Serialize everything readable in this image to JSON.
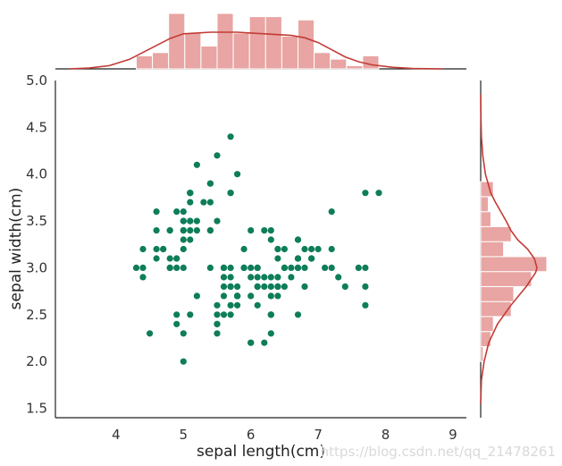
{
  "chart_data": {
    "type": "scatter",
    "xlabel": "sepal length(cm)",
    "ylabel": "sepal width(cm)",
    "xlim": [
      3.1,
      9.2
    ],
    "ylim": [
      1.4,
      5.0
    ],
    "x_ticks": [
      "4",
      "5",
      "6",
      "7",
      "8",
      "9"
    ],
    "x_tick_values": [
      4,
      5,
      6,
      7,
      8,
      9
    ],
    "y_ticks": [
      "1.5",
      "2.0",
      "2.5",
      "3.0",
      "3.5",
      "4.0",
      "4.5",
      "5.0"
    ],
    "y_tick_values": [
      1.5,
      2.0,
      2.5,
      3.0,
      3.5,
      4.0,
      4.5,
      5.0
    ],
    "grid": false,
    "scatter_color": "#0e7d5a",
    "hist_color": "#e8a5a3",
    "kde_color": "#c23b35",
    "points": [
      [
        4.3,
        3.0
      ],
      [
        4.4,
        3.0
      ],
      [
        4.4,
        2.9
      ],
      [
        4.4,
        3.2
      ],
      [
        4.5,
        2.3
      ],
      [
        4.6,
        3.1
      ],
      [
        4.6,
        3.4
      ],
      [
        4.6,
        3.6
      ],
      [
        4.6,
        3.2
      ],
      [
        4.7,
        3.2
      ],
      [
        4.7,
        3.2
      ],
      [
        4.8,
        3.4
      ],
      [
        4.8,
        3.0
      ],
      [
        4.8,
        3.4
      ],
      [
        4.8,
        3.1
      ],
      [
        4.8,
        3.0
      ],
      [
        4.9,
        3.0
      ],
      [
        4.9,
        3.1
      ],
      [
        4.9,
        3.1
      ],
      [
        4.9,
        3.6
      ],
      [
        4.9,
        2.4
      ],
      [
        4.9,
        2.5
      ],
      [
        5.0,
        3.6
      ],
      [
        5.0,
        3.4
      ],
      [
        5.0,
        3.0
      ],
      [
        5.0,
        3.4
      ],
      [
        5.0,
        3.2
      ],
      [
        5.0,
        3.5
      ],
      [
        5.0,
        3.5
      ],
      [
        5.0,
        3.3
      ],
      [
        5.0,
        2.0
      ],
      [
        5.0,
        2.3
      ],
      [
        5.1,
        3.5
      ],
      [
        5.1,
        3.5
      ],
      [
        5.1,
        3.8
      ],
      [
        5.1,
        3.7
      ],
      [
        5.1,
        3.3
      ],
      [
        5.1,
        3.4
      ],
      [
        5.1,
        3.8
      ],
      [
        5.1,
        3.8
      ],
      [
        5.1,
        2.5
      ],
      [
        5.2,
        3.5
      ],
      [
        5.2,
        3.4
      ],
      [
        5.2,
        4.1
      ],
      [
        5.2,
        2.7
      ],
      [
        5.3,
        3.7
      ],
      [
        5.4,
        3.9
      ],
      [
        5.4,
        3.7
      ],
      [
        5.4,
        3.9
      ],
      [
        5.4,
        3.4
      ],
      [
        5.4,
        3.4
      ],
      [
        5.4,
        3.0
      ],
      [
        5.5,
        4.2
      ],
      [
        5.5,
        3.5
      ],
      [
        5.5,
        2.3
      ],
      [
        5.5,
        2.4
      ],
      [
        5.5,
        2.4
      ],
      [
        5.5,
        2.5
      ],
      [
        5.5,
        2.6
      ],
      [
        5.6,
        2.9
      ],
      [
        5.6,
        3.0
      ],
      [
        5.6,
        2.5
      ],
      [
        5.6,
        3.0
      ],
      [
        5.6,
        2.7
      ],
      [
        5.6,
        2.8
      ],
      [
        5.7,
        4.4
      ],
      [
        5.7,
        3.8
      ],
      [
        5.7,
        3.8
      ],
      [
        5.7,
        2.8
      ],
      [
        5.7,
        2.6
      ],
      [
        5.7,
        3.0
      ],
      [
        5.7,
        2.9
      ],
      [
        5.7,
        2.8
      ],
      [
        5.7,
        2.5
      ],
      [
        5.8,
        4.0
      ],
      [
        5.8,
        2.7
      ],
      [
        5.8,
        2.6
      ],
      [
        5.8,
        2.7
      ],
      [
        5.8,
        2.7
      ],
      [
        5.8,
        2.8
      ],
      [
        5.8,
        2.7
      ],
      [
        5.9,
        3.0
      ],
      [
        5.9,
        3.2
      ],
      [
        5.9,
        3.0
      ],
      [
        6.0,
        2.2
      ],
      [
        6.0,
        2.9
      ],
      [
        6.0,
        3.4
      ],
      [
        6.0,
        2.7
      ],
      [
        6.0,
        2.2
      ],
      [
        6.0,
        3.0
      ],
      [
        6.1,
        2.9
      ],
      [
        6.1,
        2.8
      ],
      [
        6.1,
        2.8
      ],
      [
        6.1,
        3.0
      ],
      [
        6.1,
        2.6
      ],
      [
        6.1,
        3.0
      ],
      [
        6.2,
        2.2
      ],
      [
        6.2,
        2.9
      ],
      [
        6.2,
        2.8
      ],
      [
        6.2,
        3.4
      ],
      [
        6.3,
        3.3
      ],
      [
        6.3,
        2.5
      ],
      [
        6.3,
        2.3
      ],
      [
        6.3,
        2.5
      ],
      [
        6.3,
        2.9
      ],
      [
        6.3,
        2.7
      ],
      [
        6.3,
        2.8
      ],
      [
        6.3,
        3.4
      ],
      [
        6.3,
        2.5
      ],
      [
        6.4,
        3.2
      ],
      [
        6.4,
        2.9
      ],
      [
        6.4,
        2.7
      ],
      [
        6.4,
        3.2
      ],
      [
        6.4,
        2.8
      ],
      [
        6.4,
        2.8
      ],
      [
        6.4,
        3.1
      ],
      [
        6.5,
        2.8
      ],
      [
        6.5,
        3.0
      ],
      [
        6.5,
        3.2
      ],
      [
        6.5,
        3.0
      ],
      [
        6.6,
        3.0
      ],
      [
        6.6,
        2.9
      ],
      [
        6.7,
        3.1
      ],
      [
        6.7,
        3.0
      ],
      [
        6.7,
        3.1
      ],
      [
        6.7,
        2.5
      ],
      [
        6.7,
        3.3
      ],
      [
        6.7,
        3.1
      ],
      [
        6.7,
        3.3
      ],
      [
        6.7,
        3.0
      ],
      [
        6.8,
        2.8
      ],
      [
        6.8,
        3.0
      ],
      [
        6.8,
        3.2
      ],
      [
        6.9,
        3.1
      ],
      [
        6.9,
        3.2
      ],
      [
        6.9,
        3.1
      ],
      [
        6.9,
        3.1
      ],
      [
        7.0,
        3.2
      ],
      [
        7.1,
        3.0
      ],
      [
        7.2,
        3.6
      ],
      [
        7.2,
        3.2
      ],
      [
        7.2,
        3.0
      ],
      [
        7.3,
        2.9
      ],
      [
        7.4,
        2.8
      ],
      [
        7.6,
        3.0
      ],
      [
        7.7,
        3.8
      ],
      [
        7.7,
        2.6
      ],
      [
        7.7,
        2.8
      ],
      [
        7.7,
        3.0
      ],
      [
        7.9,
        3.8
      ]
    ],
    "marginal_x": {
      "bin_edges": [
        4.3,
        4.54,
        4.78,
        5.02,
        5.26,
        5.5,
        5.74,
        5.98,
        6.22,
        6.46,
        6.7,
        6.94,
        7.18,
        7.42,
        7.66,
        7.9
      ],
      "counts": [
        4,
        5,
        17,
        11,
        7,
        17,
        11,
        16,
        16,
        10,
        15,
        5,
        3,
        1,
        4
      ],
      "kde_x": [
        3.3,
        3.6,
        3.9,
        4.2,
        4.5,
        4.8,
        5.0,
        5.2,
        5.4,
        5.6,
        5.8,
        6.0,
        6.2,
        6.4,
        6.6,
        6.8,
        7.0,
        7.2,
        7.4,
        7.6,
        7.8,
        8.1,
        8.4,
        8.85
      ],
      "kde_density": [
        0.0,
        0.01,
        0.04,
        0.12,
        0.25,
        0.38,
        0.44,
        0.45,
        0.46,
        0.46,
        0.46,
        0.45,
        0.44,
        0.43,
        0.42,
        0.39,
        0.33,
        0.24,
        0.15,
        0.09,
        0.05,
        0.02,
        0.005,
        0.0
      ]
    },
    "marginal_y": {
      "bin_edges": [
        2.0,
        2.16,
        2.32,
        2.48,
        2.64,
        2.8,
        2.96,
        3.12,
        3.28,
        3.44,
        3.6,
        3.76,
        3.92
      ],
      "counts": [
        1,
        4,
        5,
        12,
        13,
        20,
        26,
        9,
        12,
        4,
        3,
        5
      ],
      "kde_y": [
        1.55,
        1.8,
        2.0,
        2.2,
        2.4,
        2.6,
        2.8,
        2.95,
        3.0,
        3.1,
        3.2,
        3.3,
        3.4,
        3.5,
        3.6,
        3.7,
        3.8,
        4.0,
        4.2,
        4.4,
        4.6,
        4.85
      ],
      "kde_density": [
        0.0,
        0.01,
        0.05,
        0.12,
        0.25,
        0.45,
        0.68,
        0.82,
        0.84,
        0.8,
        0.7,
        0.55,
        0.45,
        0.38,
        0.3,
        0.22,
        0.15,
        0.07,
        0.03,
        0.01,
        0.004,
        0.0
      ]
    }
  },
  "watermark": "https://blog.csdn.net/qq_21478261"
}
